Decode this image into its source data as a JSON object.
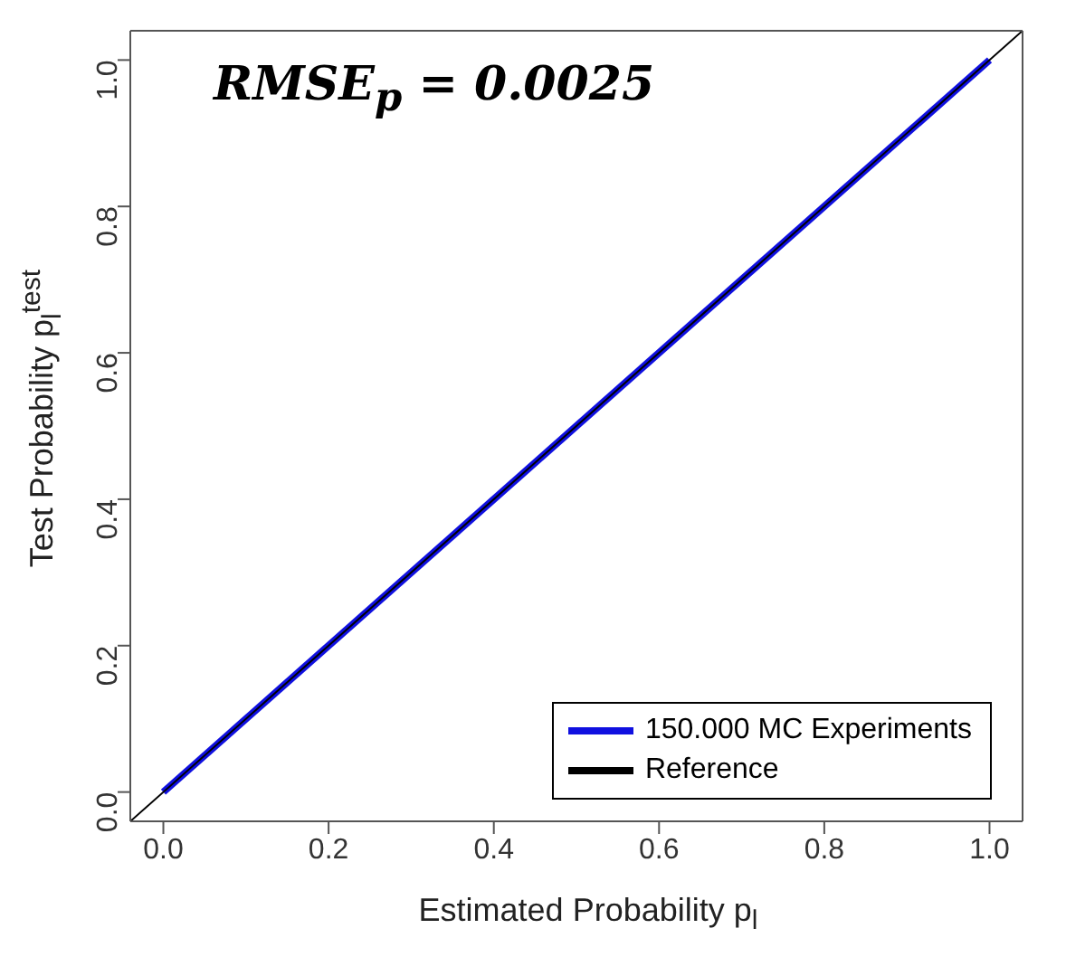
{
  "chart_data": {
    "type": "line",
    "xlabel": "Estimated Probability p$_{l}$",
    "ylabel": "Test Probability p$_{l}$$^{test}$",
    "annotations": [
      "RMSE$_{p}$ = 0.0025"
    ],
    "series": [
      {
        "name": "150.000 MC Experiments",
        "color": "#1010e0",
        "x": [
          0,
          1
        ],
        "values": [
          0,
          1
        ]
      },
      {
        "name": "Reference",
        "color": "#000000",
        "x": [
          -0.04,
          1.04
        ],
        "values": [
          -0.04,
          1.04
        ]
      }
    ],
    "xlim": [
      -0.04,
      1.04
    ],
    "ylim": [
      -0.04,
      1.04
    ],
    "xticks": [
      {
        "value": 0,
        "label": "0.0"
      },
      {
        "value": 0.2,
        "label": "0.2"
      },
      {
        "value": 0.4,
        "label": "0.4"
      },
      {
        "value": 0.6,
        "label": "0.6"
      },
      {
        "value": 0.8,
        "label": "0.8"
      },
      {
        "value": 1,
        "label": "1.0"
      }
    ],
    "yticks": [
      {
        "value": 0,
        "label": "0.0"
      },
      {
        "value": 0.2,
        "label": "0.2"
      },
      {
        "value": 0.4,
        "label": "0.4"
      },
      {
        "value": 0.6,
        "label": "0.6"
      },
      {
        "value": 0.8,
        "label": "0.8"
      },
      {
        "value": 1,
        "label": "1.0"
      }
    ],
    "grid": false,
    "legend": "bottom right",
    "marker": "none",
    "line_style": "solid"
  }
}
